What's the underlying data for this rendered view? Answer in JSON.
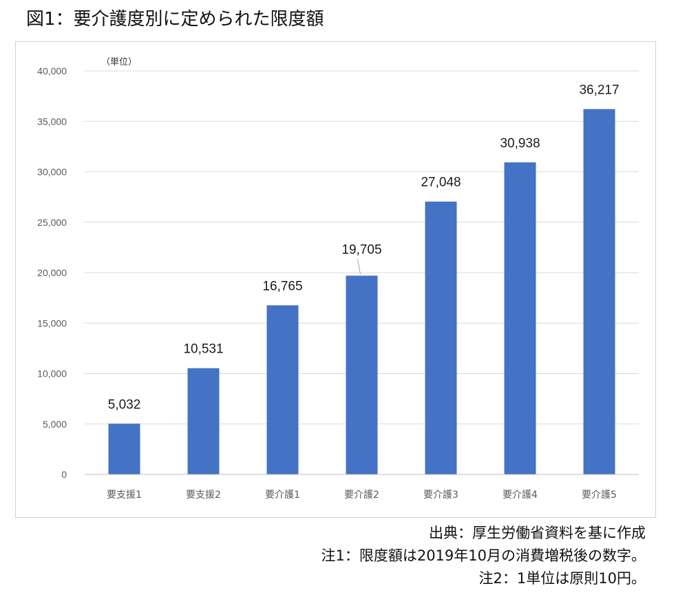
{
  "title": "図1：要介護度別に定められた限度額",
  "chart_data": {
    "type": "bar",
    "unit_label": "（単位）",
    "categories": [
      "要支援1",
      "要支援2",
      "要介護1",
      "要介護2",
      "要介護3",
      "要介護4",
      "要介護5"
    ],
    "values": [
      5032,
      10531,
      16765,
      19705,
      27048,
      30938,
      36217
    ],
    "data_labels": [
      "5,032",
      "10,531",
      "16,765",
      "19,705",
      "27,048",
      "30,938",
      "36,217"
    ],
    "ylim": [
      0,
      40000
    ],
    "yticks": [
      0,
      5000,
      10000,
      15000,
      20000,
      25000,
      30000,
      35000,
      40000
    ],
    "ytick_labels": [
      "0",
      "5,000",
      "10,000",
      "15,000",
      "20,000",
      "25,000",
      "30,000",
      "35,000",
      "40,000"
    ],
    "grid": true,
    "bar_color": "#4472c4",
    "grid_color": "#d9d9d9"
  },
  "notes": {
    "source": "出典：厚生労働省資料を基に作成",
    "note1": "注1：限度額は2019年10月の消費増税後の数字。",
    "note2": "注2：1単位は原則10円。"
  }
}
